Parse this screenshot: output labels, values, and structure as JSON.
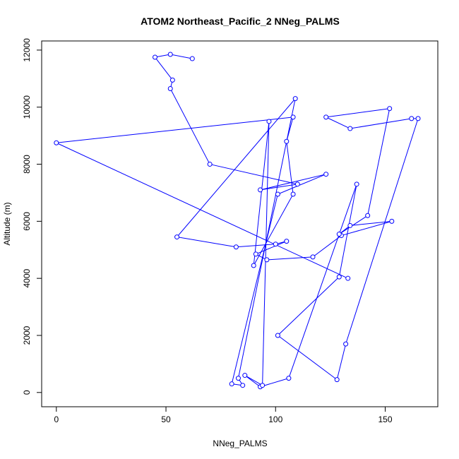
{
  "chart_data": {
    "type": "line",
    "title": "ATOM2 Northeast_Pacific_2 NNeg_PALMS",
    "xlabel": "NNeg_PALMS",
    "ylabel": "Altitude (m)",
    "xlim": [
      -6.7,
      174
    ],
    "ylim": [
      -500,
      12320
    ],
    "xticks": [
      0,
      50,
      100,
      150
    ],
    "yticks": [
      0,
      2000,
      4000,
      6000,
      8000,
      10000,
      12000
    ],
    "grid": false,
    "markers": "open-circle",
    "color": "#0000ff",
    "series": [
      {
        "x": [
          62,
          52,
          45,
          53,
          52,
          70,
          110,
          93,
          123,
          101,
          80,
          85,
          83,
          109,
          55,
          82,
          100,
          105,
          91,
          96,
          117,
          130,
          153,
          134,
          129,
          142,
          152,
          123,
          134,
          162,
          165,
          132,
          128,
          101,
          129,
          137,
          106,
          93,
          86,
          94,
          97,
          90,
          108,
          105,
          108,
          0,
          133
        ],
        "y": [
          11700,
          11850,
          11750,
          10950,
          10650,
          8000,
          7300,
          7100,
          7650,
          6950,
          300,
          250,
          500,
          10300,
          5450,
          5100,
          5200,
          5300,
          4850,
          4650,
          4750,
          5500,
          6000,
          5850,
          5550,
          6200,
          9950,
          9650,
          9250,
          9600,
          9600,
          1700,
          450,
          2000,
          4050,
          7300,
          500,
          200,
          600,
          250,
          9500,
          4450,
          6950,
          8800,
          9650,
          8750,
          4000
        ]
      }
    ]
  }
}
